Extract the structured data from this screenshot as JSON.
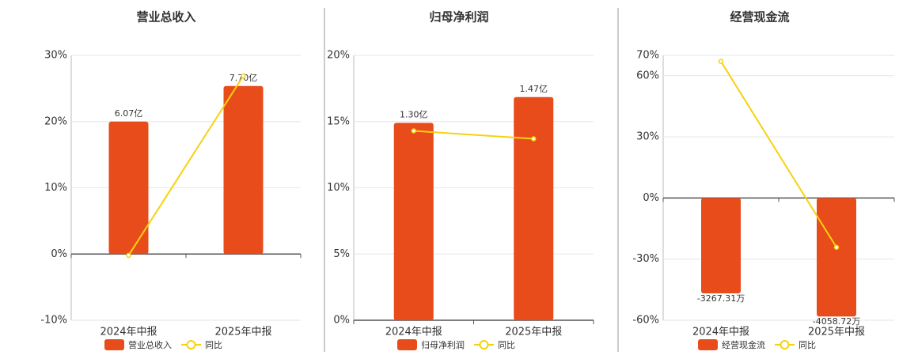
{
  "chart_data": [
    {
      "type": "bar",
      "title": "营业总收入",
      "categories": [
        "2024年中报",
        "2025年中报"
      ],
      "series": [
        {
          "name": "营业总收入",
          "type": "bar",
          "color": "#e84c1a",
          "axis": "y2",
          "values": [
            6.07,
            7.7
          ],
          "value_labels": [
            "6.07亿",
            "7.70亿"
          ]
        },
        {
          "name": "同比",
          "type": "line",
          "color": "#f5d20f",
          "values": [
            -0.2,
            26.9
          ]
        }
      ],
      "ylim": [
        -10,
        30
      ],
      "yticks": [
        {
          "value": -10,
          "label": "-10%"
        },
        {
          "value": 0,
          "label": "0%"
        },
        {
          "value": 10,
          "label": "10%"
        },
        {
          "value": 20,
          "label": "20%"
        },
        {
          "value": 30,
          "label": "30%"
        }
      ],
      "y2lim": [
        -3.035,
        9.105
      ],
      "grid": true
    },
    {
      "type": "bar",
      "title": "归母净利润",
      "categories": [
        "2024年中报",
        "2025年中报"
      ],
      "series": [
        {
          "name": "归母净利润",
          "type": "bar",
          "color": "#e84c1a",
          "axis": "y2",
          "values": [
            1.3,
            1.47
          ],
          "value_labels": [
            "1.30亿",
            "1.47亿"
          ]
        },
        {
          "name": "同比",
          "type": "line",
          "color": "#f5d20f",
          "values": [
            14.3,
            13.7
          ]
        }
      ],
      "ylim": [
        0,
        20
      ],
      "yticks": [
        {
          "value": 0,
          "label": "0%"
        },
        {
          "value": 5,
          "label": "5%"
        },
        {
          "value": 10,
          "label": "10%"
        },
        {
          "value": 15,
          "label": "15%"
        },
        {
          "value": 20,
          "label": "20%"
        }
      ],
      "y2lim": [
        0,
        1.745
      ],
      "grid": true
    },
    {
      "type": "bar",
      "title": "经营现金流",
      "categories": [
        "2024年中报",
        "2025年中报"
      ],
      "series": [
        {
          "name": "经营现金流",
          "type": "bar",
          "color": "#e84c1a",
          "axis": "y2",
          "values": [
            -3267.31,
            -4058.72
          ],
          "value_labels": [
            "-3267.31万",
            "-4058.72万"
          ]
        },
        {
          "name": "同比",
          "type": "line",
          "color": "#f5d20f",
          "values": [
            67,
            -24.2
          ]
        }
      ],
      "ylim": [
        -60,
        70
      ],
      "yticks": [
        {
          "value": -60,
          "label": "-60%"
        },
        {
          "value": -30,
          "label": "-30%"
        },
        {
          "value": 0,
          "label": "0%"
        },
        {
          "value": 30,
          "label": "30%"
        },
        {
          "value": 60,
          "label": "60%"
        },
        {
          "value": 70,
          "label": "70%"
        }
      ],
      "y2lim": [
        -4188,
        4886
      ],
      "grid": true
    }
  ]
}
